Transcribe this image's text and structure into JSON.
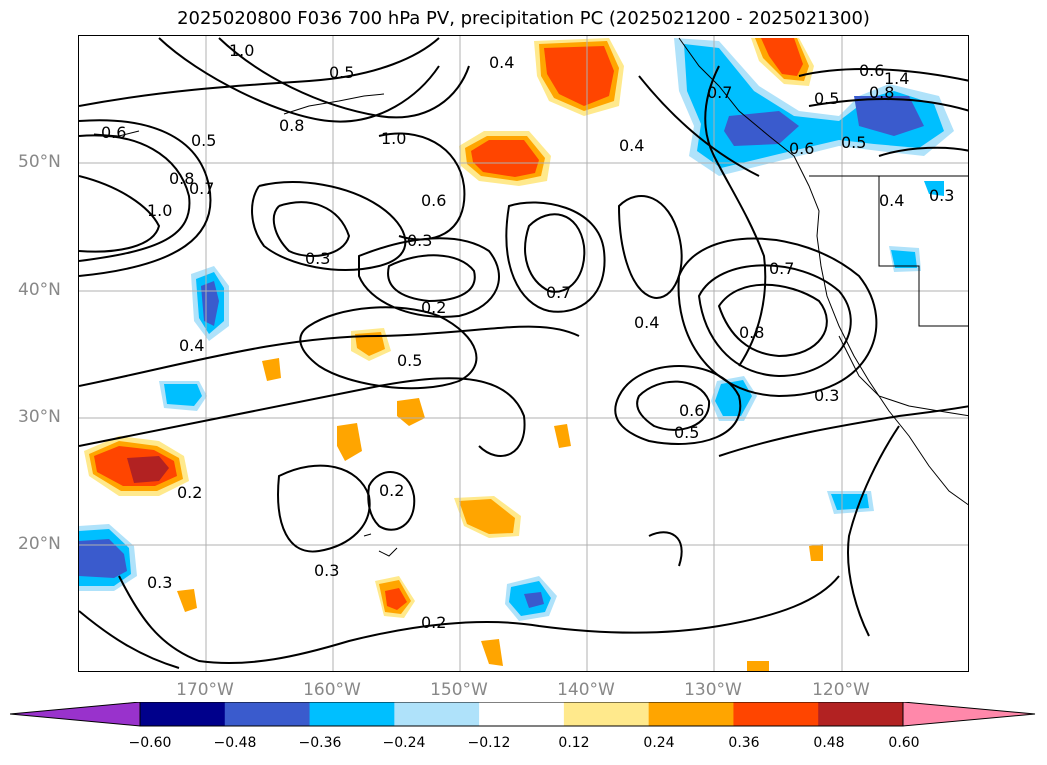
{
  "title": "2025020800 F036 700 hPa PV, precipitation PC (2025021200 - 2025021300)",
  "lat_labels": [
    "50°N",
    "40°N",
    "30°N",
    "20°N"
  ],
  "lon_labels": [
    "170°W",
    "160°W",
    "150°W",
    "140°W",
    "130°W",
    "120°W"
  ],
  "colorbar": {
    "ticks": [
      "−0.60",
      "−0.48",
      "−0.36",
      "−0.24",
      "−0.12",
      "0.12",
      "0.24",
      "0.36",
      "0.48",
      "0.60"
    ],
    "colors": [
      "#9932cc",
      "#00008b",
      "#3a5bcd",
      "#00bfff",
      "#afe2fa",
      "#ffffff",
      "#ffe98c",
      "#ffa500",
      "#ff4500",
      "#b22222",
      "#ff88aa"
    ]
  },
  "contour_labels": [
    "1.0",
    "0.6",
    "0.5",
    "0.8",
    "0.7",
    "0.4",
    "1.0",
    "0.6",
    "0.3",
    "0.3",
    "0.2",
    "0.7",
    "0.4",
    "0.5",
    "0.4",
    "0.2",
    "0.2",
    "0.3",
    "0.3",
    "0.2",
    "0.6",
    "0.5",
    "0.3",
    "0.8",
    "0.7",
    "0.4",
    "0.3",
    "0.5",
    "0.5",
    "0.6",
    "0.7",
    "0.8",
    "1.0",
    "0.4",
    "0.5",
    "0.6",
    "0.8",
    "1.4"
  ],
  "colors": {
    "axis_text": "#888888",
    "contour": "#000000",
    "grid": "#b0b0b0",
    "coast": "#000000"
  }
}
